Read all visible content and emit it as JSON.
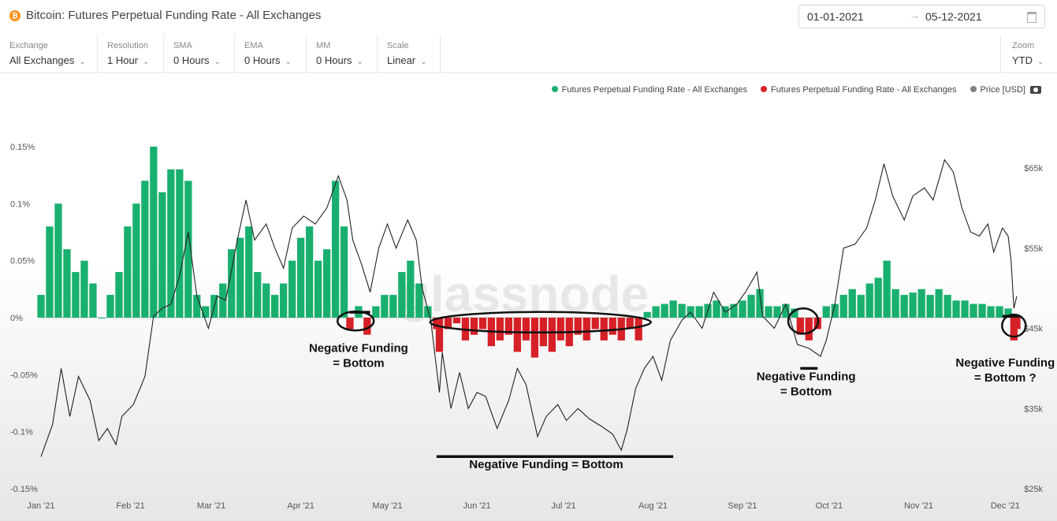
{
  "header": {
    "title": "Bitcoin: Futures Perpetual Funding Rate - All Exchanges",
    "date_start": "01-01-2021",
    "date_end": "05-12-2021",
    "arrow": "→"
  },
  "toolbar": {
    "controls": [
      {
        "label": "Exchange",
        "value": "All Exchanges"
      },
      {
        "label": "Resolution",
        "value": "1 Hour"
      },
      {
        "label": "SMA",
        "value": "0 Hours"
      },
      {
        "label": "EMA",
        "value": "0 Hours"
      },
      {
        "label": "MM",
        "value": "0 Hours"
      },
      {
        "label": "Scale",
        "value": "Linear"
      }
    ],
    "zoom": {
      "label": "Zoom",
      "value": "YTD"
    }
  },
  "legend": [
    {
      "label": "Futures Perpetual Funding Rate - All Exchanges",
      "color": "#19b06f"
    },
    {
      "label": "Futures Perpetual Funding Rate - All Exchanges",
      "color": "#d62027"
    },
    {
      "label": "Price [USD]",
      "color": "#808080"
    }
  ],
  "chart_data": {
    "type": "area",
    "colors": {
      "positive": "#19b06f",
      "negative": "#d62027",
      "price": "#222222",
      "annotation": "#111111"
    },
    "x_axis": {
      "ticks": [
        "Jan '21",
        "Feb '21",
        "Mar '21",
        "Apr '21",
        "May '21",
        "Jun '21",
        "Jul '21",
        "Aug '21",
        "Sep '21",
        "Oct '21",
        "Nov '21",
        "Dec '21"
      ],
      "range": [
        "2021-01-01",
        "2021-12-05"
      ]
    },
    "y_left": {
      "ticks": [
        0.15,
        0.1,
        0.05,
        0,
        -0.05,
        -0.1,
        -0.15
      ],
      "tick_labels": [
        "0.15%",
        "0.1%",
        "0.05%",
        "0%",
        "-0.05%",
        "-0.1%",
        "-0.15%"
      ],
      "range": [
        -0.15,
        0.15
      ]
    },
    "y_right": {
      "ticks": [
        65000,
        55000,
        45000,
        35000,
        25000
      ],
      "tick_labels": [
        "$65k",
        "$55k",
        "$45k",
        "$35k",
        "$25k"
      ],
      "range": [
        25000,
        66000
      ]
    },
    "funding_rate": {
      "name": "Futures Perpetual Funding Rate - All Exchanges",
      "points": [
        [
          "2021-01-01",
          0.02
        ],
        [
          "2021-01-04",
          0.08
        ],
        [
          "2021-01-07",
          0.1
        ],
        [
          "2021-01-10",
          0.06
        ],
        [
          "2021-01-13",
          0.04
        ],
        [
          "2021-01-16",
          0.05
        ],
        [
          "2021-01-19",
          0.03
        ],
        [
          "2021-01-22",
          0.0
        ],
        [
          "2021-01-25",
          0.02
        ],
        [
          "2021-01-28",
          0.04
        ],
        [
          "2021-01-31",
          0.08
        ],
        [
          "2021-02-03",
          0.1
        ],
        [
          "2021-02-06",
          0.12
        ],
        [
          "2021-02-09",
          0.15
        ],
        [
          "2021-02-12",
          0.11
        ],
        [
          "2021-02-15",
          0.13
        ],
        [
          "2021-02-18",
          0.13
        ],
        [
          "2021-02-21",
          0.12
        ],
        [
          "2021-02-24",
          0.02
        ],
        [
          "2021-02-27",
          0.01
        ],
        [
          "2021-03-02",
          0.02
        ],
        [
          "2021-03-05",
          0.03
        ],
        [
          "2021-03-08",
          0.06
        ],
        [
          "2021-03-11",
          0.07
        ],
        [
          "2021-03-14",
          0.08
        ],
        [
          "2021-03-17",
          0.04
        ],
        [
          "2021-03-20",
          0.03
        ],
        [
          "2021-03-23",
          0.02
        ],
        [
          "2021-03-26",
          0.03
        ],
        [
          "2021-03-29",
          0.05
        ],
        [
          "2021-04-01",
          0.07
        ],
        [
          "2021-04-04",
          0.08
        ],
        [
          "2021-04-07",
          0.05
        ],
        [
          "2021-04-10",
          0.06
        ],
        [
          "2021-04-13",
          0.12
        ],
        [
          "2021-04-16",
          0.08
        ],
        [
          "2021-04-18",
          -0.01
        ],
        [
          "2021-04-21",
          0.01
        ],
        [
          "2021-04-24",
          -0.015
        ],
        [
          "2021-04-27",
          0.01
        ],
        [
          "2021-04-30",
          0.02
        ],
        [
          "2021-05-03",
          0.02
        ],
        [
          "2021-05-06",
          0.04
        ],
        [
          "2021-05-09",
          0.05
        ],
        [
          "2021-05-12",
          0.03
        ],
        [
          "2021-05-15",
          0.01
        ],
        [
          "2021-05-18",
          -0.01
        ],
        [
          "2021-05-19",
          -0.03
        ],
        [
          "2021-05-22",
          -0.01
        ],
        [
          "2021-05-25",
          -0.005
        ],
        [
          "2021-05-28",
          -0.02
        ],
        [
          "2021-05-31",
          -0.015
        ],
        [
          "2021-06-03",
          -0.01
        ],
        [
          "2021-06-06",
          -0.025
        ],
        [
          "2021-06-09",
          -0.02
        ],
        [
          "2021-06-12",
          -0.015
        ],
        [
          "2021-06-15",
          -0.03
        ],
        [
          "2021-06-18",
          -0.02
        ],
        [
          "2021-06-21",
          -0.035
        ],
        [
          "2021-06-24",
          -0.025
        ],
        [
          "2021-06-27",
          -0.03
        ],
        [
          "2021-06-30",
          -0.02
        ],
        [
          "2021-07-03",
          -0.025
        ],
        [
          "2021-07-06",
          -0.015
        ],
        [
          "2021-07-09",
          -0.02
        ],
        [
          "2021-07-12",
          -0.01
        ],
        [
          "2021-07-15",
          -0.02
        ],
        [
          "2021-07-18",
          -0.015
        ],
        [
          "2021-07-21",
          -0.02
        ],
        [
          "2021-07-24",
          -0.01
        ],
        [
          "2021-07-27",
          -0.02
        ],
        [
          "2021-07-30",
          0.005
        ],
        [
          "2021-08-02",
          0.01
        ],
        [
          "2021-08-05",
          0.012
        ],
        [
          "2021-08-08",
          0.015
        ],
        [
          "2021-08-11",
          0.012
        ],
        [
          "2021-08-14",
          0.01
        ],
        [
          "2021-08-17",
          0.01
        ],
        [
          "2021-08-20",
          0.012
        ],
        [
          "2021-08-23",
          0.015
        ],
        [
          "2021-08-26",
          0.01
        ],
        [
          "2021-08-29",
          0.012
        ],
        [
          "2021-09-01",
          0.015
        ],
        [
          "2021-09-04",
          0.02
        ],
        [
          "2021-09-07",
          0.025
        ],
        [
          "2021-09-10",
          0.01
        ],
        [
          "2021-09-13",
          0.01
        ],
        [
          "2021-09-16",
          0.012
        ],
        [
          "2021-09-19",
          0.008
        ],
        [
          "2021-09-21",
          -0.015
        ],
        [
          "2021-09-24",
          -0.02
        ],
        [
          "2021-09-27",
          -0.01
        ],
        [
          "2021-09-30",
          0.01
        ],
        [
          "2021-10-03",
          0.012
        ],
        [
          "2021-10-06",
          0.02
        ],
        [
          "2021-10-09",
          0.025
        ],
        [
          "2021-10-12",
          0.02
        ],
        [
          "2021-10-15",
          0.03
        ],
        [
          "2021-10-18",
          0.035
        ],
        [
          "2021-10-21",
          0.05
        ],
        [
          "2021-10-24",
          0.025
        ],
        [
          "2021-10-27",
          0.02
        ],
        [
          "2021-10-30",
          0.022
        ],
        [
          "2021-11-02",
          0.025
        ],
        [
          "2021-11-05",
          0.02
        ],
        [
          "2021-11-08",
          0.025
        ],
        [
          "2021-11-11",
          0.02
        ],
        [
          "2021-11-14",
          0.015
        ],
        [
          "2021-11-17",
          0.015
        ],
        [
          "2021-11-20",
          0.012
        ],
        [
          "2021-11-23",
          0.012
        ],
        [
          "2021-11-26",
          0.01
        ],
        [
          "2021-11-29",
          0.01
        ],
        [
          "2021-12-02",
          0.008
        ],
        [
          "2021-12-04",
          -0.02
        ],
        [
          "2021-12-05",
          -0.01
        ]
      ]
    },
    "price": {
      "name": "Price [USD]",
      "points": [
        [
          "2021-01-01",
          29000
        ],
        [
          "2021-01-05",
          33000
        ],
        [
          "2021-01-08",
          40000
        ],
        [
          "2021-01-11",
          34000
        ],
        [
          "2021-01-14",
          39000
        ],
        [
          "2021-01-18",
          36000
        ],
        [
          "2021-01-21",
          31000
        ],
        [
          "2021-01-24",
          32500
        ],
        [
          "2021-01-27",
          30500
        ],
        [
          "2021-01-29",
          34000
        ],
        [
          "2021-02-02",
          35500
        ],
        [
          "2021-02-06",
          39000
        ],
        [
          "2021-02-09",
          46500
        ],
        [
          "2021-02-12",
          47500
        ],
        [
          "2021-02-15",
          48000
        ],
        [
          "2021-02-18",
          51500
        ],
        [
          "2021-02-21",
          57000
        ],
        [
          "2021-02-24",
          49000
        ],
        [
          "2021-02-28",
          45000
        ],
        [
          "2021-03-03",
          49000
        ],
        [
          "2021-03-06",
          48500
        ],
        [
          "2021-03-10",
          56000
        ],
        [
          "2021-03-13",
          61000
        ],
        [
          "2021-03-16",
          56000
        ],
        [
          "2021-03-20",
          58000
        ],
        [
          "2021-03-23",
          55000
        ],
        [
          "2021-03-26",
          52500
        ],
        [
          "2021-03-29",
          57500
        ],
        [
          "2021-04-02",
          59000
        ],
        [
          "2021-04-06",
          58000
        ],
        [
          "2021-04-10",
          60000
        ],
        [
          "2021-04-14",
          64000
        ],
        [
          "2021-04-17",
          61000
        ],
        [
          "2021-04-19",
          56000
        ],
        [
          "2021-04-22",
          53000
        ],
        [
          "2021-04-25",
          49500
        ],
        [
          "2021-04-28",
          55000
        ],
        [
          "2021-05-01",
          58000
        ],
        [
          "2021-05-04",
          55000
        ],
        [
          "2021-05-08",
          58500
        ],
        [
          "2021-05-11",
          56000
        ],
        [
          "2021-05-13",
          50000
        ],
        [
          "2021-05-16",
          46000
        ],
        [
          "2021-05-19",
          37000
        ],
        [
          "2021-05-20",
          42000
        ],
        [
          "2021-05-23",
          35000
        ],
        [
          "2021-05-26",
          39500
        ],
        [
          "2021-05-29",
          35000
        ],
        [
          "2021-06-01",
          37000
        ],
        [
          "2021-06-04",
          36500
        ],
        [
          "2021-06-08",
          32500
        ],
        [
          "2021-06-12",
          36000
        ],
        [
          "2021-06-15",
          40000
        ],
        [
          "2021-06-18",
          38000
        ],
        [
          "2021-06-22",
          31500
        ],
        [
          "2021-06-25",
          34000
        ],
        [
          "2021-06-29",
          35500
        ],
        [
          "2021-07-02",
          33500
        ],
        [
          "2021-07-06",
          35000
        ],
        [
          "2021-07-10",
          33700
        ],
        [
          "2021-07-14",
          32800
        ],
        [
          "2021-07-18",
          31800
        ],
        [
          "2021-07-21",
          29800
        ],
        [
          "2021-07-23",
          32300
        ],
        [
          "2021-07-26",
          37500
        ],
        [
          "2021-07-29",
          40000
        ],
        [
          "2021-08-01",
          41500
        ],
        [
          "2021-08-04",
          38500
        ],
        [
          "2021-08-07",
          43500
        ],
        [
          "2021-08-11",
          46000
        ],
        [
          "2021-08-14",
          47000
        ],
        [
          "2021-08-18",
          45000
        ],
        [
          "2021-08-22",
          49500
        ],
        [
          "2021-08-26",
          47000
        ],
        [
          "2021-08-30",
          48000
        ],
        [
          "2021-09-02",
          49500
        ],
        [
          "2021-09-06",
          52000
        ],
        [
          "2021-09-08",
          46500
        ],
        [
          "2021-09-12",
          45000
        ],
        [
          "2021-09-16",
          48000
        ],
        [
          "2021-09-20",
          43000
        ],
        [
          "2021-09-24",
          42500
        ],
        [
          "2021-09-28",
          41500
        ],
        [
          "2021-09-30",
          43500
        ],
        [
          "2021-10-03",
          48000
        ],
        [
          "2021-10-06",
          55000
        ],
        [
          "2021-10-10",
          55500
        ],
        [
          "2021-10-14",
          57500
        ],
        [
          "2021-10-17",
          61000
        ],
        [
          "2021-10-20",
          65500
        ],
        [
          "2021-10-23",
          61500
        ],
        [
          "2021-10-27",
          58500
        ],
        [
          "2021-10-30",
          61500
        ],
        [
          "2021-11-03",
          62500
        ],
        [
          "2021-11-06",
          61000
        ],
        [
          "2021-11-10",
          66000
        ],
        [
          "2021-11-13",
          64500
        ],
        [
          "2021-11-16",
          60000
        ],
        [
          "2021-11-19",
          57000
        ],
        [
          "2021-11-22",
          56500
        ],
        [
          "2021-11-25",
          58000
        ],
        [
          "2021-11-27",
          54500
        ],
        [
          "2021-11-30",
          57500
        ],
        [
          "2021-12-02",
          56500
        ],
        [
          "2021-12-03",
          53500
        ],
        [
          "2021-12-04",
          47500
        ],
        [
          "2021-12-05",
          49000
        ]
      ]
    },
    "watermark": "glassnode",
    "annotations": {
      "ellipses": [
        {
          "date": "2021-04-20",
          "value": -0.003
        },
        {
          "date": "2021-06-23",
          "value": -0.004
        },
        {
          "date": "2021-09-22",
          "value": -0.003
        },
        {
          "date": "2021-12-04",
          "value": -0.007
        }
      ],
      "bars": [
        {
          "from": "2021-04-18",
          "to": "2021-04-25",
          "price": 47000
        },
        {
          "from": "2021-05-18",
          "to": "2021-08-08",
          "price": 29000
        },
        {
          "from": "2021-09-21",
          "to": "2021-09-27",
          "price": 40000
        },
        {
          "from": "2021-11-30",
          "to": "2021-12-06",
          "price": 46500
        }
      ],
      "labels": [
        {
          "lines": [
            "Negative Funding",
            "= Bottom"
          ],
          "date": "2021-04-21",
          "value": -0.03
        },
        {
          "lines": [
            "Negative Funding  = Bottom"
          ],
          "date": "2021-06-25",
          "value": -0.132
        },
        {
          "lines": [
            "Negative Funding",
            "= Bottom"
          ],
          "date": "2021-09-23",
          "value": -0.055
        },
        {
          "lines": [
            "Negative Funding",
            "= Bottom ?"
          ],
          "date": "2021-12-01",
          "value": -0.043
        }
      ]
    }
  }
}
